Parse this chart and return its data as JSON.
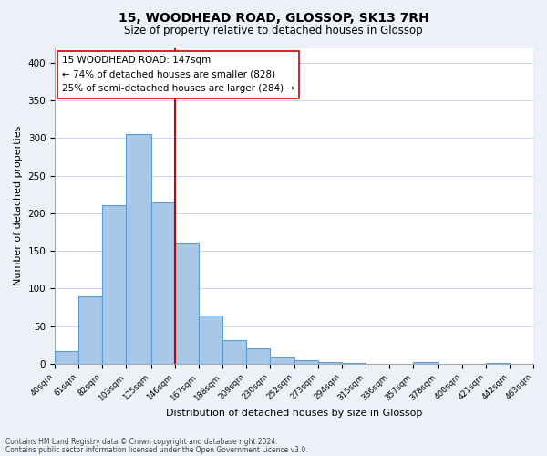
{
  "title": "15, WOODHEAD ROAD, GLOSSOP, SK13 7RH",
  "subtitle": "Size of property relative to detached houses in Glossop",
  "xlabel": "Distribution of detached houses by size in Glossop",
  "ylabel": "Number of detached properties",
  "bar_color": "#a8c8e8",
  "bar_edge_color": "#5a9fd4",
  "vline_color": "#cc0000",
  "vline_x": 146,
  "annotation_title": "15 WOODHEAD ROAD: 147sqm",
  "annotation_line1": "← 74% of detached houses are smaller (828)",
  "annotation_line2": "25% of semi-detached houses are larger (284) →",
  "bin_edges": [
    40,
    61,
    82,
    103,
    125,
    146,
    167,
    188,
    209,
    230,
    252,
    273,
    294,
    315,
    336,
    357,
    378,
    400,
    421,
    442,
    463
  ],
  "bin_heights": [
    17,
    90,
    211,
    305,
    214,
    161,
    64,
    31,
    20,
    10,
    5,
    2,
    1,
    0,
    0,
    2,
    0,
    0,
    1,
    0
  ],
  "ylim": [
    0,
    420
  ],
  "yticks": [
    0,
    50,
    100,
    150,
    200,
    250,
    300,
    350,
    400
  ],
  "footnote1": "Contains HM Land Registry data © Crown copyright and database right 2024.",
  "footnote2": "Contains public sector information licensed under the Open Government Licence v3.0.",
  "background_color": "#edf1f7",
  "plot_bg_color": "#ffffff"
}
